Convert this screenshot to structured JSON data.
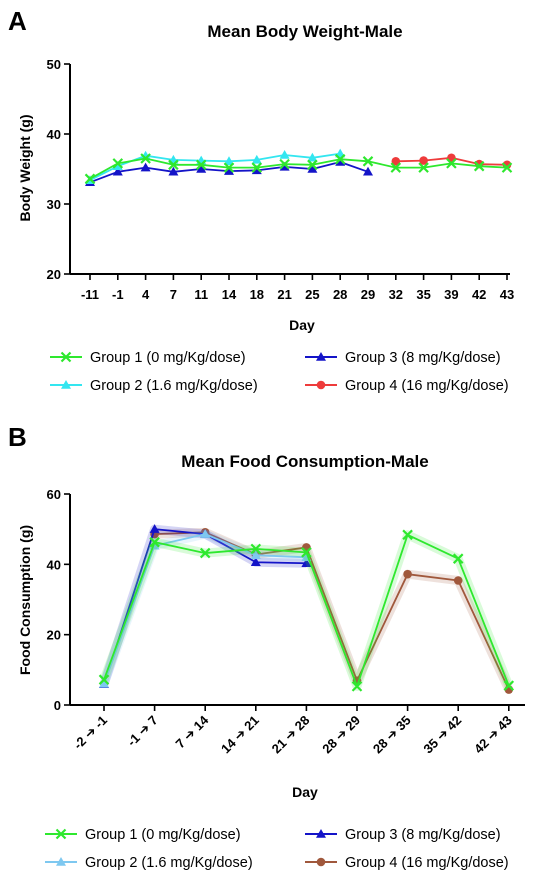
{
  "chart_data": [
    {
      "type": "line",
      "panel": "A",
      "title": "Mean Body Weight-Male",
      "xlabel": "Day",
      "ylabel": "Body Weight (g)",
      "ylim": [
        20,
        50
      ],
      "yticks": [
        20,
        30,
        40,
        50
      ],
      "categories": [
        "-11",
        "-1",
        "4",
        "7",
        "11",
        "14",
        "18",
        "21",
        "25",
        "28",
        "29",
        "32",
        "35",
        "39",
        "42",
        "43"
      ],
      "grid": false,
      "legend": "bottom",
      "series": [
        {
          "name": "Group 1 (0 mg/Kg/dose)",
          "color": "#2ee82e",
          "marker": "x",
          "values": [
            33.6,
            35.8,
            36.5,
            35.6,
            35.6,
            35.2,
            35.2,
            35.7,
            35.6,
            36.4,
            36.1,
            35.2,
            35.2,
            35.8,
            35.4,
            35.2
          ]
        },
        {
          "name": "Group 2 (1.6 mg/Kg/dose)",
          "color": "#33e6f0",
          "marker": "triangle",
          "values": [
            33.4,
            35.4,
            36.9,
            36.3,
            36.2,
            36.1,
            36.3,
            37.0,
            36.6,
            37.2,
            null,
            null,
            null,
            null,
            null,
            null
          ]
        },
        {
          "name": "Group 3 (8 mg/Kg/dose)",
          "color": "#1414c8",
          "marker": "triangle",
          "values": [
            33.1,
            34.6,
            35.2,
            34.6,
            35.0,
            34.7,
            34.8,
            35.3,
            35.0,
            36.0,
            34.6,
            null,
            null,
            null,
            null,
            null
          ]
        },
        {
          "name": "Group 4 (16 mg/Kg/dose)",
          "color": "#ee3b3b",
          "marker": "circle",
          "values": [
            null,
            null,
            null,
            null,
            null,
            null,
            null,
            null,
            null,
            null,
            null,
            36.1,
            36.2,
            36.6,
            35.7,
            35.6
          ]
        }
      ]
    },
    {
      "type": "line",
      "panel": "B",
      "title": "Mean Food Consumption-Male",
      "xlabel": "Day",
      "ylabel": "Food Consumption (g)",
      "ylim": [
        0,
        60
      ],
      "yticks": [
        0,
        20,
        40,
        60
      ],
      "categories": [
        "-2 ➔ -1",
        "-1 ➔ 7",
        "7 ➔ 14",
        "14 ➔ 21",
        "21 ➔ 28",
        "28 ➔ 29",
        "28 ➔ 35",
        "35 ➔ 42",
        "42 ➔ 43"
      ],
      "grid": false,
      "legend": "bottom",
      "series": [
        {
          "name": "Group 1 (0 mg/Kg/dose)",
          "color": "#2ee82e",
          "marker": "x",
          "values": [
            7.2,
            46.3,
            43.2,
            44.4,
            43.4,
            5.3,
            48.4,
            41.6,
            5.5
          ]
        },
        {
          "name": "Group 2 (1.6 mg/Kg/dose)",
          "color": "#7ec8f0",
          "marker": "triangle",
          "values": [
            6.0,
            45.3,
            48.6,
            42.6,
            42.0,
            null,
            null,
            null,
            null
          ]
        },
        {
          "name": "Group 3 (8 mg/Kg/dose)",
          "color": "#1414c8",
          "marker": "triangle",
          "values": [
            5.9,
            50.0,
            48.6,
            40.6,
            40.3,
            null,
            null,
            null,
            null
          ]
        },
        {
          "name": "Group 4 (16 mg/Kg/dose)",
          "color": "#a0583c",
          "marker": "circle",
          "values": [
            null,
            48.6,
            49.1,
            42.8,
            44.8,
            6.9,
            37.2,
            35.4,
            4.4
          ]
        }
      ]
    }
  ]
}
